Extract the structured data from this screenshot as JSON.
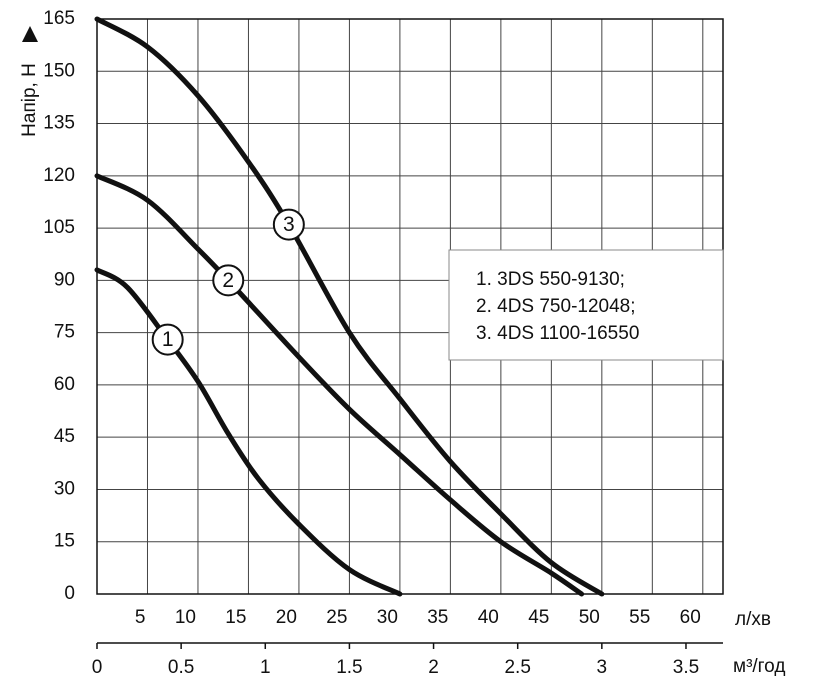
{
  "chart_data": {
    "type": "line",
    "y_label": "Напір, Н",
    "x_label": "л/хв",
    "x2_label": "м³/год",
    "xlim": [
      0,
      62
    ],
    "xticks": [
      5,
      10,
      15,
      20,
      25,
      30,
      35,
      40,
      45,
      50,
      55,
      60
    ],
    "x2lim": [
      0,
      3.72
    ],
    "x2ticks": [
      0,
      0.5,
      1,
      1.5,
      2,
      2.5,
      3,
      3.5
    ],
    "ylim": [
      0,
      165
    ],
    "yticks": [
      0,
      15,
      30,
      45,
      60,
      75,
      90,
      105,
      120,
      135,
      150,
      165
    ],
    "grid": true,
    "legend": "upper right",
    "series": [
      {
        "name": "1. 3DS 550-9130;",
        "marker_label": "1",
        "color": "#111111",
        "x": [
          0,
          3,
          7,
          10,
          13,
          16,
          20,
          25,
          30
        ],
        "values": [
          93,
          88,
          73,
          61,
          46,
          33,
          20,
          7,
          0
        ]
      },
      {
        "name": "2. 4DS 750-12048;",
        "marker_label": "2",
        "color": "#111111",
        "x": [
          0,
          5,
          10,
          13,
          20,
          25,
          30,
          35,
          40,
          45,
          48
        ],
        "values": [
          120,
          113,
          99,
          90,
          68,
          53,
          40,
          27,
          15,
          6,
          0
        ]
      },
      {
        "name": "3. 4DS 1100-16550",
        "marker_label": "3",
        "color": "#111111",
        "x": [
          0,
          5,
          10,
          15,
          19,
          25,
          30,
          35,
          40,
          45,
          50
        ],
        "values": [
          165,
          157,
          143,
          124,
          106,
          75,
          56,
          38,
          23,
          9,
          0
        ]
      }
    ]
  }
}
